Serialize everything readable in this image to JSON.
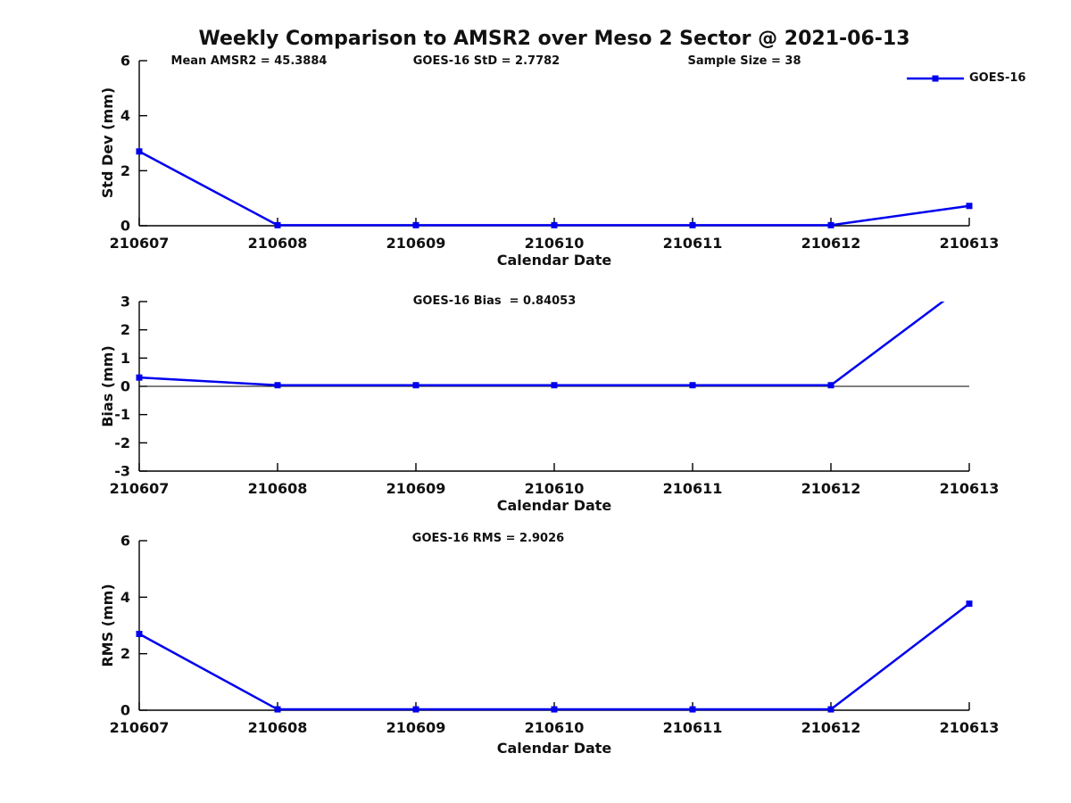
{
  "title": "Weekly Comparison to AMSR2 over Meso 2 Sector @ 2021-06-13",
  "header_stats": {
    "mean_amsr2": "Mean AMSR2 = 45.3884",
    "goes16_std": "GOES-16 StD = 2.7782",
    "sample_size": "Sample Size = 38"
  },
  "legend": {
    "label": "GOES-16",
    "position": "top-right",
    "marker": "filled-square",
    "color": "#0000ee"
  },
  "colors": {
    "series_blue": "#0000ee",
    "axis_black": "#000000",
    "text_black": "#111111"
  },
  "chart_data": [
    {
      "type": "line",
      "name": "std-dev",
      "ylabel": "Std Dev (mm)",
      "xlabel": "Calendar Date",
      "ylim": [
        0,
        6
      ],
      "yticks": [
        0,
        2,
        4,
        6
      ],
      "grid": false,
      "categories": [
        "210607",
        "210608",
        "210609",
        "210610",
        "210611",
        "210612",
        "210613"
      ],
      "series": [
        {
          "name": "GOES-16",
          "values": [
            2.7,
            0.02,
            0.02,
            0.02,
            0.02,
            0.02,
            0.72
          ]
        }
      ]
    },
    {
      "type": "line",
      "name": "bias",
      "annotation": "GOES-16 Bias  = 0.84053",
      "ylabel": "Bias (mm)",
      "xlabel": "Calendar Date",
      "ylim": [
        -3,
        3
      ],
      "yticks": [
        -3,
        -2,
        -1,
        0,
        1,
        2,
        3
      ],
      "zero_line": true,
      "grid": false,
      "categories": [
        "210607",
        "210608",
        "210609",
        "210610",
        "210611",
        "210612",
        "210613"
      ],
      "series": [
        {
          "name": "GOES-16",
          "values": [
            0.31,
            0.04,
            0.04,
            0.04,
            0.04,
            0.04,
            3.7
          ],
          "clipped_at_ymax": true
        }
      ]
    },
    {
      "type": "line",
      "name": "rms",
      "annotation": "GOES-16 RMS = 2.9026",
      "ylabel": "RMS (mm)",
      "xlabel": "Calendar Date",
      "ylim": [
        0,
        6
      ],
      "yticks": [
        0,
        2,
        4,
        6
      ],
      "grid": false,
      "categories": [
        "210607",
        "210608",
        "210609",
        "210610",
        "210611",
        "210612",
        "210613"
      ],
      "series": [
        {
          "name": "GOES-16",
          "values": [
            2.7,
            0.03,
            0.03,
            0.03,
            0.03,
            0.03,
            3.77
          ]
        }
      ]
    }
  ]
}
